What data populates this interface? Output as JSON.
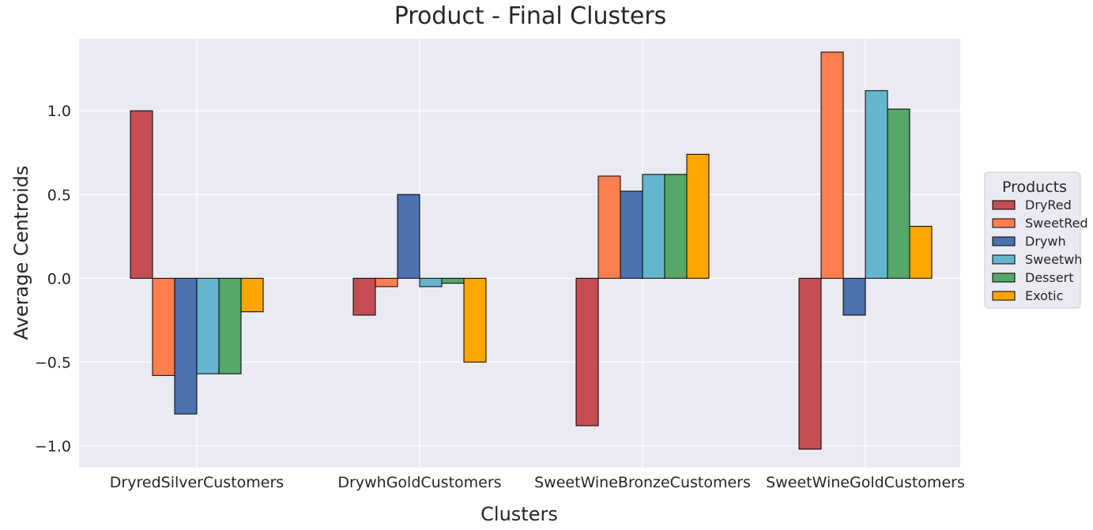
{
  "chart_data": {
    "type": "bar",
    "title": "Product - Final Clusters",
    "xlabel": "Clusters",
    "ylabel": "Average Centroids",
    "categories": [
      "DryredSilverCustomers",
      "DrywhGoldCustomers",
      "SweetWineBronzeCustomers",
      "SweetWineGoldCustomers"
    ],
    "series": [
      {
        "name": "DryRed",
        "color": "#c44e52",
        "values": [
          1.0,
          -0.22,
          -0.88,
          -1.02
        ]
      },
      {
        "name": "SweetRed",
        "color": "#ff7f50",
        "values": [
          -0.58,
          -0.05,
          0.61,
          1.35
        ]
      },
      {
        "name": "Drywh",
        "color": "#4c72b0",
        "values": [
          -0.81,
          0.5,
          0.52,
          -0.22
        ]
      },
      {
        "name": "Sweetwh",
        "color": "#64b5cd",
        "values": [
          -0.57,
          -0.05,
          0.62,
          1.12
        ]
      },
      {
        "name": "Dessert",
        "color": "#55a868",
        "values": [
          -0.57,
          -0.03,
          0.62,
          1.01
        ]
      },
      {
        "name": "Exotic",
        "color": "#ffa500",
        "values": [
          -0.2,
          -0.5,
          0.74,
          0.31
        ]
      }
    ],
    "ylim": [
      -1.13,
      1.43
    ],
    "yticks": [
      -1.0,
      -0.5,
      0.0,
      0.5,
      1.0
    ],
    "ytick_labels": [
      "−1.0",
      "−0.5",
      "0.0",
      "0.5",
      "1.0"
    ],
    "grid": true,
    "legend": {
      "title": "Products",
      "placement": "outside-right"
    }
  }
}
